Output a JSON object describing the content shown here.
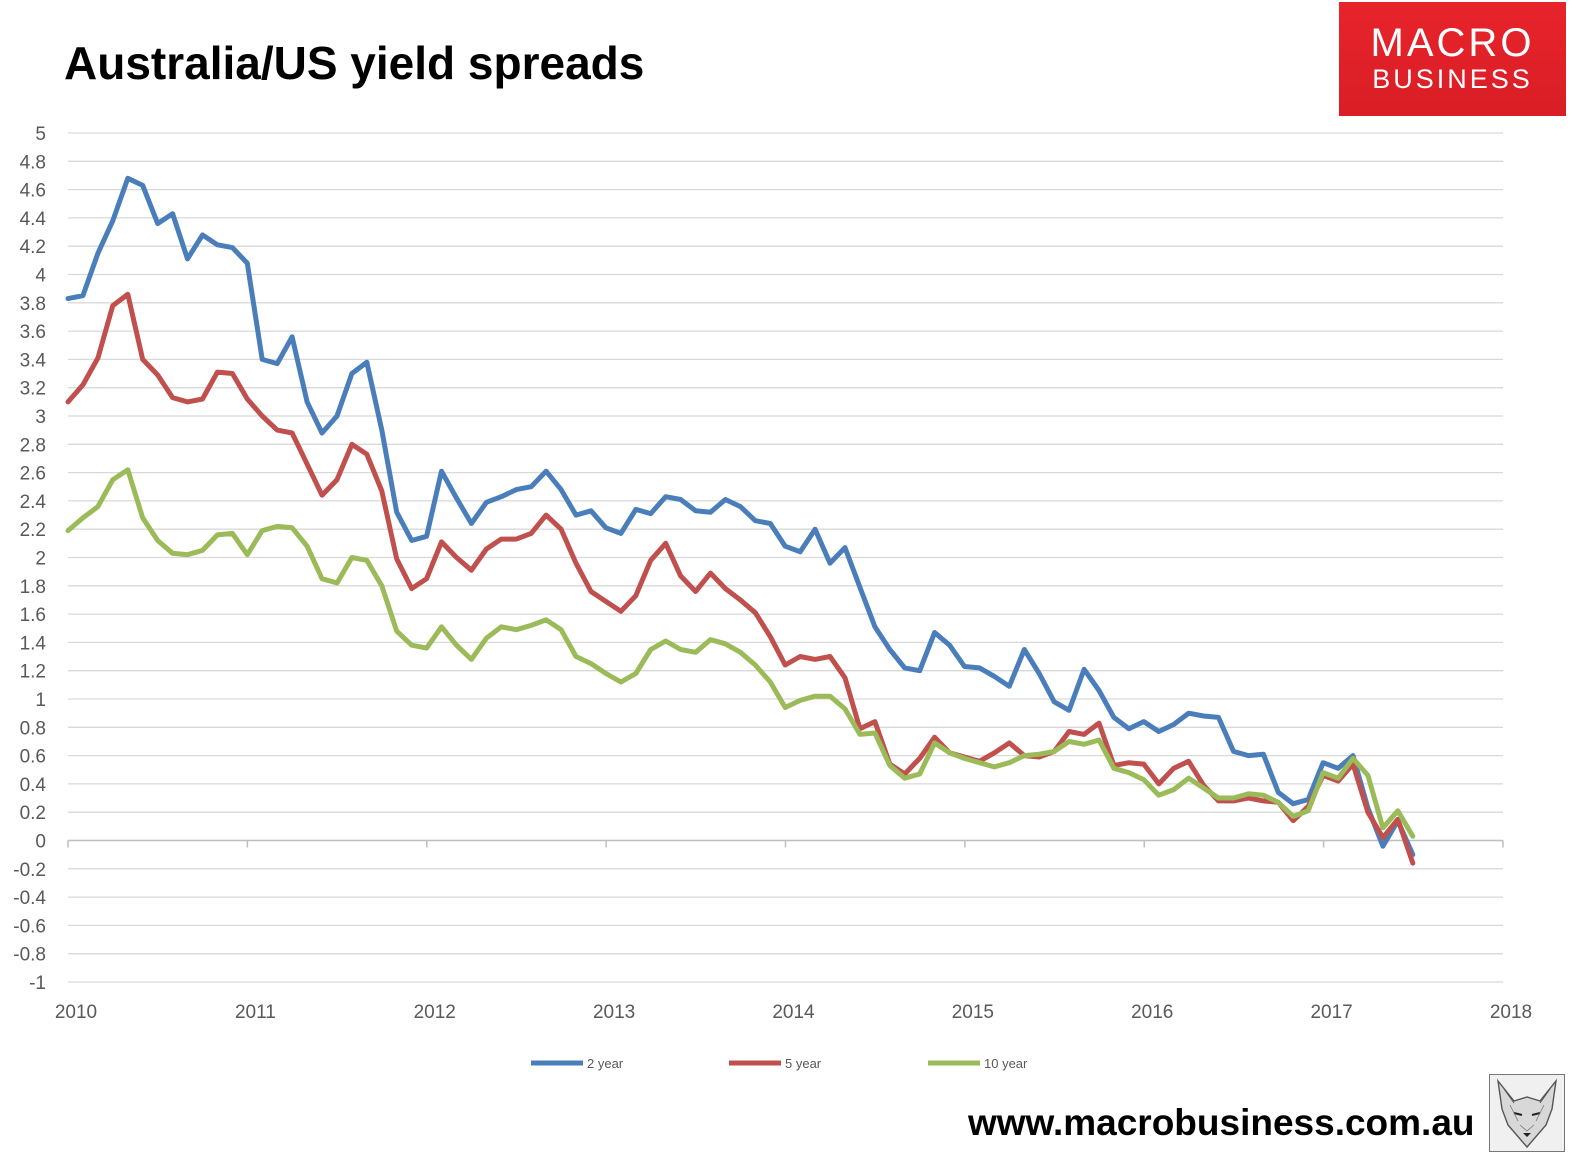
{
  "title": "Australia/US yield spreads",
  "logo": {
    "line1": "MACRO",
    "line2": "BUSINESS",
    "color": "#e8232b"
  },
  "footer": {
    "url": "www.macrobusiness.com.au"
  },
  "icons": {
    "logo": "macrobusiness-logo",
    "fox": "fox-head-icon"
  },
  "chart_data": {
    "type": "line",
    "title": "Australia/US yield spreads",
    "xlabel": "",
    "ylabel": "",
    "x_ticks": [
      "2010",
      "2011",
      "2012",
      "2013",
      "2014",
      "2015",
      "2016",
      "2017",
      "2018"
    ],
    "xlim": [
      2010,
      2018
    ],
    "ylim": [
      -1,
      5
    ],
    "y_ticks": [
      5,
      4.8,
      4.6,
      4.4,
      4.2,
      4,
      3.8,
      3.6,
      3.4,
      3.2,
      3,
      2.8,
      2.6,
      2.4,
      2.2,
      2,
      1.8,
      1.6,
      1.4,
      1.2,
      1,
      0.8,
      0.6,
      0.4,
      0.2,
      0,
      -0.2,
      -0.4,
      -0.6,
      -0.8,
      -1
    ],
    "y_tick_labels": [
      "5",
      "4.8",
      "4.6",
      "4.4",
      "4.2",
      "4",
      "3.8",
      "3.6",
      "3.4",
      "3.2",
      "3",
      "2.8",
      "2.6",
      "2.4",
      "2.2",
      "2",
      "1.8",
      "1.6",
      "1.4",
      "1.2",
      "1",
      "0.8",
      "0.6",
      "0.4",
      "0.2",
      "0",
      "-0.2",
      "-0.4",
      "-0.6",
      "-0.8",
      "-1"
    ],
    "grid": true,
    "legend_position": "bottom",
    "x_step": 0.0833,
    "series": [
      {
        "name": "2 year",
        "color": "#4a7ebb",
        "values": [
          3.83,
          3.85,
          4.15,
          4.38,
          4.68,
          4.63,
          4.36,
          4.43,
          4.11,
          4.28,
          4.21,
          4.19,
          4.08,
          3.4,
          3.37,
          3.56,
          3.1,
          2.88,
          3.0,
          3.3,
          3.38,
          2.9,
          2.32,
          2.12,
          2.15,
          2.61,
          2.42,
          2.24,
          2.39,
          2.43,
          2.48,
          2.5,
          2.61,
          2.48,
          2.3,
          2.33,
          2.21,
          2.17,
          2.34,
          2.31,
          2.43,
          2.41,
          2.33,
          2.32,
          2.41,
          2.36,
          2.26,
          2.24,
          2.08,
          2.04,
          2.2,
          1.96,
          2.07,
          1.79,
          1.51,
          1.35,
          1.22,
          1.2,
          1.47,
          1.38,
          1.23,
          1.22,
          1.16,
          1.09,
          1.35,
          1.18,
          0.98,
          0.92,
          1.21,
          1.06,
          0.87,
          0.79,
          0.84,
          0.77,
          0.82,
          0.9,
          0.88,
          0.87,
          0.63,
          0.6,
          0.61,
          0.34,
          0.26,
          0.29,
          0.55,
          0.51,
          0.6,
          0.23,
          -0.04,
          0.14,
          -0.1
        ]
      },
      {
        "name": "5 year",
        "color": "#c0504d",
        "values": [
          3.1,
          3.22,
          3.41,
          3.78,
          3.86,
          3.4,
          3.29,
          3.13,
          3.1,
          3.12,
          3.31,
          3.3,
          3.12,
          3.0,
          2.9,
          2.88,
          2.66,
          2.44,
          2.55,
          2.8,
          2.73,
          2.47,
          1.99,
          1.78,
          1.85,
          2.11,
          2.0,
          1.91,
          2.06,
          2.13,
          2.13,
          2.17,
          2.3,
          2.2,
          1.96,
          1.76,
          1.69,
          1.62,
          1.73,
          1.98,
          2.1,
          1.87,
          1.76,
          1.89,
          1.78,
          1.7,
          1.61,
          1.44,
          1.24,
          1.3,
          1.28,
          1.3,
          1.15,
          0.79,
          0.84,
          0.54,
          0.47,
          0.58,
          0.73,
          0.62,
          0.59,
          0.56,
          0.62,
          0.69,
          0.6,
          0.59,
          0.63,
          0.77,
          0.75,
          0.83,
          0.53,
          0.55,
          0.54,
          0.4,
          0.51,
          0.56,
          0.39,
          0.28,
          0.28,
          0.3,
          0.28,
          0.27,
          0.14,
          0.24,
          0.46,
          0.42,
          0.54,
          0.2,
          0.02,
          0.15,
          -0.16
        ]
      },
      {
        "name": "10 year",
        "color": "#9bbb59",
        "values": [
          2.19,
          2.28,
          2.36,
          2.55,
          2.62,
          2.28,
          2.12,
          2.03,
          2.02,
          2.05,
          2.16,
          2.17,
          2.02,
          2.19,
          2.22,
          2.21,
          2.08,
          1.85,
          1.82,
          2.0,
          1.98,
          1.8,
          1.48,
          1.38,
          1.36,
          1.51,
          1.38,
          1.28,
          1.43,
          1.51,
          1.49,
          1.52,
          1.56,
          1.49,
          1.3,
          1.25,
          1.18,
          1.12,
          1.18,
          1.35,
          1.41,
          1.35,
          1.33,
          1.42,
          1.39,
          1.33,
          1.24,
          1.12,
          0.94,
          0.99,
          1.02,
          1.02,
          0.93,
          0.75,
          0.76,
          0.53,
          0.44,
          0.47,
          0.69,
          0.62,
          0.58,
          0.55,
          0.52,
          0.55,
          0.6,
          0.61,
          0.63,
          0.7,
          0.68,
          0.71,
          0.51,
          0.48,
          0.43,
          0.32,
          0.36,
          0.44,
          0.37,
          0.3,
          0.3,
          0.33,
          0.32,
          0.27,
          0.17,
          0.21,
          0.48,
          0.44,
          0.58,
          0.46,
          0.09,
          0.21,
          0.03
        ]
      }
    ]
  }
}
